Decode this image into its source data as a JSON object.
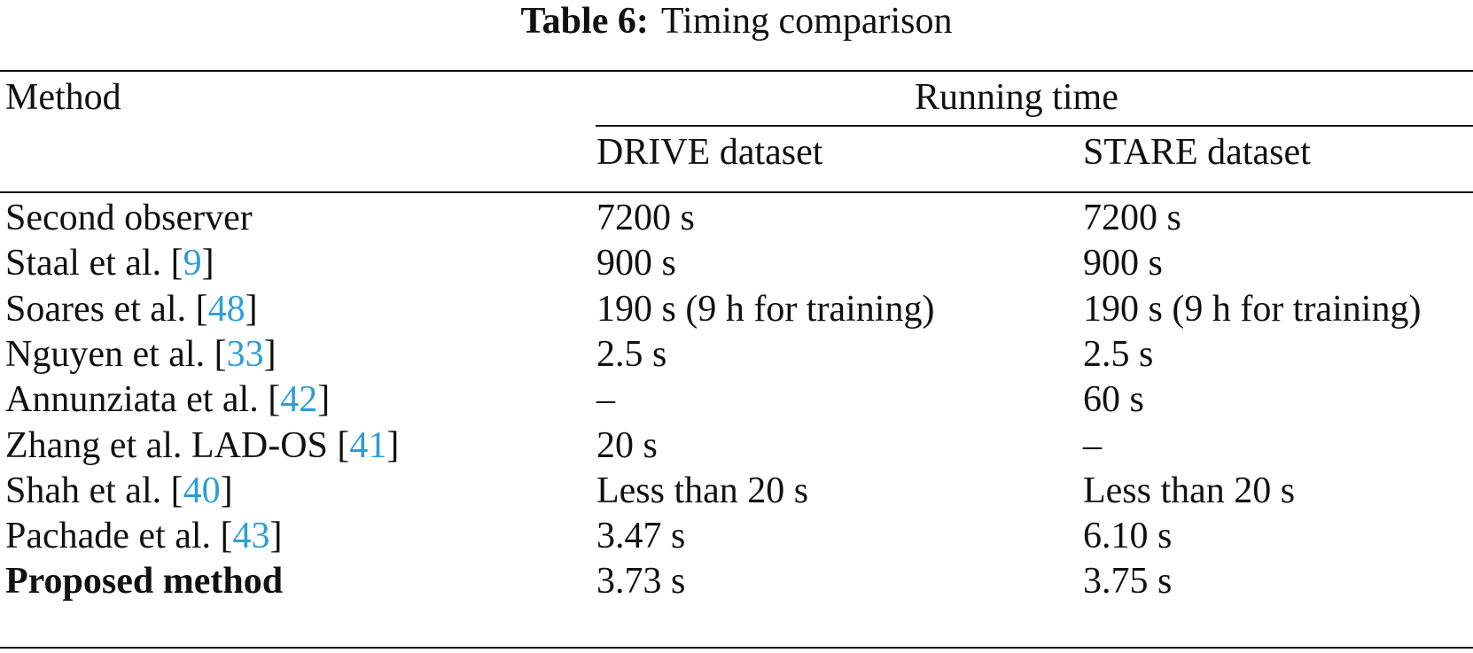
{
  "caption": {
    "label": "Table 6:",
    "text": "Timing comparison"
  },
  "headers": {
    "method": "Method",
    "running_time": "Running time",
    "drive": "DRIVE dataset",
    "stare": "STARE dataset"
  },
  "rows": [
    {
      "method": "Second observer",
      "ref": "",
      "drive": "7200 s",
      "stare": "7200 s",
      "bold": false
    },
    {
      "method": "Staal et al. [",
      "ref": "9",
      "drive": "900 s",
      "stare": "900 s",
      "bold": false
    },
    {
      "method": "Soares et al. [",
      "ref": "48",
      "drive": "190 s (9 h for training)",
      "stare": "190 s (9 h for training)",
      "bold": false
    },
    {
      "method": "Nguyen et al. [",
      "ref": "33",
      "drive": "2.5 s",
      "stare": "2.5 s",
      "bold": false
    },
    {
      "method": "Annunziata et al. [",
      "ref": "42",
      "drive": "–",
      "stare": "60 s",
      "bold": false
    },
    {
      "method": "Zhang et al. LAD-OS [",
      "ref": "41",
      "drive": "20 s",
      "stare": "–",
      "bold": false
    },
    {
      "method": "Shah et al. [",
      "ref": "40",
      "drive": "Less than 20 s",
      "stare": "Less than 20 s",
      "bold": false
    },
    {
      "method": "Pachade et al. [",
      "ref": "43",
      "drive": "3.47 s",
      "stare": "6.10 s",
      "bold": false
    },
    {
      "method": "Proposed method",
      "ref": "",
      "drive": "3.73 s",
      "stare": "3.75 s",
      "bold": true
    }
  ],
  "colors": {
    "reference_link": "#2a9fd6",
    "text": "#111111"
  }
}
